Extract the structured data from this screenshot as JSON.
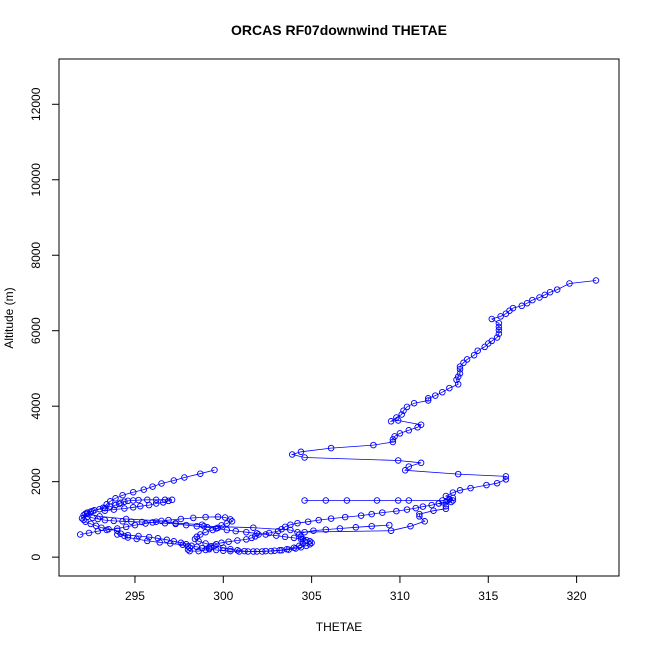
{
  "chart_data": {
    "type": "scatter",
    "title": "ORCAS RF07downwind THETAE",
    "xlabel": "THETAE",
    "ylabel": "Altitude (m)",
    "xlim": [
      290.7,
      322.4
    ],
    "ylim": [
      -500,
      13200
    ],
    "xticks": [
      295,
      300,
      305,
      310,
      315,
      320
    ],
    "yticks": [
      0,
      2000,
      4000,
      6000,
      8000,
      10000,
      12000
    ],
    "point_color": "#0000ff",
    "connect_points": true,
    "series": [
      {
        "values": [
          [
            321.1,
            7330
          ],
          [
            319.6,
            7250
          ],
          [
            318.9,
            7090
          ],
          [
            318.5,
            7020
          ],
          [
            318.2,
            6950
          ],
          [
            317.9,
            6880
          ],
          [
            317.5,
            6810
          ],
          [
            317.2,
            6730
          ],
          [
            316.9,
            6660
          ],
          [
            316.4,
            6600
          ],
          [
            316.2,
            6530
          ],
          [
            316.0,
            6450
          ],
          [
            315.7,
            6380
          ],
          [
            315.2,
            6310
          ],
          [
            315.6,
            6200
          ],
          [
            315.6,
            6100
          ],
          [
            315.6,
            6020
          ],
          [
            315.6,
            5920
          ],
          [
            315.5,
            5820
          ],
          [
            315.2,
            5730
          ],
          [
            315.0,
            5660
          ],
          [
            314.8,
            5570
          ],
          [
            314.4,
            5470
          ],
          [
            314.2,
            5350
          ],
          [
            313.8,
            5240
          ],
          [
            313.6,
            5150
          ],
          [
            313.4,
            5050
          ],
          [
            313.4,
            4980
          ],
          [
            313.4,
            4870
          ],
          [
            313.3,
            4780
          ],
          [
            313.2,
            4700
          ],
          [
            313.3,
            4580
          ],
          [
            312.8,
            4480
          ],
          [
            312.4,
            4370
          ],
          [
            312.0,
            4280
          ],
          [
            311.6,
            4210
          ],
          [
            311.6,
            4150
          ],
          [
            310.8,
            4080
          ],
          [
            310.4,
            3980
          ],
          [
            310.2,
            3880
          ],
          [
            310.1,
            3780
          ],
          [
            309.8,
            3700
          ],
          [
            309.5,
            3600
          ],
          [
            309.9,
            3620
          ],
          [
            311.2,
            3510
          ],
          [
            311.0,
            3440
          ],
          [
            310.5,
            3360
          ],
          [
            310.0,
            3280
          ],
          [
            309.7,
            3200
          ],
          [
            309.6,
            3120
          ],
          [
            309.6,
            3050
          ],
          [
            308.5,
            2970
          ],
          [
            306.1,
            2890
          ],
          [
            304.4,
            2790
          ],
          [
            303.9,
            2720
          ],
          [
            304.6,
            2640
          ],
          [
            309.9,
            2560
          ],
          [
            311.2,
            2500
          ],
          [
            310.5,
            2400
          ],
          [
            310.3,
            2300
          ],
          [
            313.3,
            2200
          ],
          [
            316.0,
            2140
          ],
          [
            316.0,
            2060
          ],
          [
            315.5,
            1960
          ],
          [
            314.9,
            1910
          ],
          [
            314.0,
            1830
          ],
          [
            313.4,
            1770
          ],
          [
            313.0,
            1710
          ],
          [
            312.6,
            1620
          ],
          [
            313.0,
            1570
          ],
          [
            312.8,
            1530
          ],
          [
            312.7,
            1500
          ],
          [
            312.9,
            1460
          ],
          [
            312.2,
            1420
          ],
          [
            312.6,
            1350
          ],
          [
            312.6,
            1280
          ],
          [
            311.9,
            1230
          ],
          [
            311.1,
            1140
          ],
          [
            311.1,
            1080
          ],
          [
            311.4,
            950
          ],
          [
            310.6,
            820
          ],
          [
            309.5,
            700
          ],
          [
            304.2,
            660
          ],
          [
            303.8,
            720
          ],
          [
            301.7,
            780
          ],
          [
            298.9,
            820
          ],
          [
            298.8,
            860
          ],
          [
            297.3,
            900
          ],
          [
            296.5,
            960
          ],
          [
            294.5,
            1010
          ],
          [
            293.0,
            1080
          ],
          [
            292.3,
            1150
          ],
          [
            292.6,
            1220
          ],
          [
            293.2,
            1310
          ],
          [
            293.4,
            1400
          ],
          [
            293.6,
            1480
          ],
          [
            293.9,
            1560
          ],
          [
            294.3,
            1640
          ],
          [
            294.9,
            1720
          ],
          [
            295.5,
            1790
          ],
          [
            296.0,
            1870
          ],
          [
            296.5,
            1950
          ],
          [
            297.2,
            2030
          ],
          [
            297.8,
            2110
          ],
          [
            298.7,
            2210
          ],
          [
            299.5,
            2310
          ]
        ]
      },
      {
        "values": [
          [
            292.0,
            1030
          ],
          [
            292.1,
            990
          ],
          [
            292.2,
            940
          ],
          [
            292.5,
            880
          ],
          [
            292.8,
            830
          ],
          [
            293.1,
            780
          ],
          [
            293.5,
            740
          ],
          [
            294.0,
            700
          ],
          [
            294.2,
            620
          ],
          [
            294.4,
            560
          ],
          [
            294.6,
            520
          ],
          [
            295.1,
            480
          ],
          [
            295.7,
            430
          ],
          [
            296.4,
            390
          ],
          [
            297.0,
            360
          ],
          [
            297.7,
            330
          ],
          [
            298.0,
            290
          ],
          [
            298.1,
            250
          ],
          [
            298.0,
            200
          ],
          [
            298.1,
            160
          ],
          [
            298.6,
            160
          ],
          [
            299.0,
            190
          ],
          [
            299.2,
            240
          ],
          [
            299.3,
            290
          ],
          [
            299.6,
            340
          ],
          [
            299.9,
            380
          ],
          [
            300.3,
            410
          ],
          [
            300.8,
            440
          ],
          [
            301.3,
            470
          ],
          [
            301.6,
            510
          ],
          [
            301.8,
            550
          ],
          [
            302.0,
            600
          ],
          [
            302.6,
            640
          ],
          [
            303.1,
            690
          ],
          [
            303.3,
            740
          ],
          [
            303.5,
            800
          ],
          [
            303.8,
            860
          ],
          [
            304.2,
            900
          ],
          [
            304.8,
            940
          ],
          [
            305.4,
            980
          ],
          [
            306.1,
            1020
          ],
          [
            306.9,
            1060
          ],
          [
            307.8,
            1100
          ],
          [
            308.4,
            1140
          ],
          [
            309.0,
            1180
          ],
          [
            309.8,
            1220
          ],
          [
            310.4,
            1260
          ],
          [
            310.9,
            1300
          ],
          [
            311.3,
            1340
          ],
          [
            311.8,
            1380
          ],
          [
            312.2,
            1420
          ],
          [
            312.6,
            1460
          ],
          [
            313.0,
            1500
          ],
          [
            312.8,
            1540
          ],
          [
            312.4,
            1500
          ],
          [
            310.5,
            1500
          ],
          [
            309.9,
            1500
          ],
          [
            308.7,
            1500
          ],
          [
            307.0,
            1500
          ],
          [
            305.8,
            1500
          ],
          [
            304.6,
            1500
          ]
        ]
      },
      {
        "values": [
          [
            291.9,
            600
          ],
          [
            292.4,
            640
          ],
          [
            292.9,
            690
          ],
          [
            293.4,
            720
          ],
          [
            294.0,
            760
          ],
          [
            294.5,
            800
          ],
          [
            295.0,
            850
          ],
          [
            295.6,
            890
          ],
          [
            296.2,
            940
          ],
          [
            296.9,
            980
          ],
          [
            297.6,
            1010
          ],
          [
            298.3,
            1040
          ],
          [
            299.0,
            1060
          ],
          [
            299.7,
            1070
          ],
          [
            300.1,
            1050
          ],
          [
            300.4,
            1000
          ],
          [
            300.5,
            950
          ],
          [
            300.2,
            890
          ],
          [
            299.9,
            840
          ],
          [
            299.7,
            780
          ],
          [
            299.4,
            720
          ],
          [
            299.0,
            660
          ],
          [
            298.7,
            600
          ],
          [
            298.5,
            540
          ],
          [
            298.4,
            480
          ],
          [
            298.6,
            420
          ],
          [
            299.0,
            360
          ],
          [
            299.5,
            300
          ],
          [
            300.0,
            250
          ],
          [
            300.4,
            210
          ],
          [
            300.8,
            180
          ],
          [
            301.2,
            160
          ],
          [
            301.7,
            150
          ],
          [
            302.2,
            150
          ],
          [
            302.7,
            160
          ],
          [
            303.2,
            180
          ],
          [
            303.6,
            210
          ],
          [
            304.0,
            250
          ],
          [
            304.3,
            300
          ],
          [
            304.5,
            360
          ],
          [
            304.6,
            420
          ],
          [
            304.5,
            480
          ],
          [
            304.4,
            540
          ],
          [
            304.3,
            600
          ],
          [
            304.6,
            660
          ],
          [
            305.1,
            700
          ],
          [
            305.8,
            730
          ],
          [
            306.6,
            760
          ],
          [
            307.5,
            790
          ],
          [
            308.4,
            820
          ],
          [
            309.4,
            850
          ]
        ]
      },
      {
        "values": [
          [
            293.3,
            1230
          ],
          [
            293.8,
            1260
          ],
          [
            294.4,
            1290
          ],
          [
            294.9,
            1320
          ],
          [
            295.3,
            1350
          ],
          [
            295.8,
            1380
          ],
          [
            296.2,
            1420
          ],
          [
            296.6,
            1450
          ],
          [
            296.9,
            1490
          ],
          [
            297.1,
            1520
          ],
          [
            296.7,
            1520
          ],
          [
            296.2,
            1520
          ],
          [
            295.7,
            1520
          ],
          [
            295.2,
            1510
          ],
          [
            294.9,
            1500
          ],
          [
            294.6,
            1490
          ],
          [
            294.4,
            1470
          ],
          [
            294.2,
            1440
          ],
          [
            294.1,
            1410
          ],
          [
            293.9,
            1380
          ],
          [
            293.6,
            1340
          ],
          [
            293.3,
            1300
          ],
          [
            293.0,
            1270
          ],
          [
            292.7,
            1240
          ],
          [
            292.5,
            1210
          ],
          [
            292.3,
            1180
          ],
          [
            292.2,
            1150
          ],
          [
            292.1,
            1110
          ],
          [
            292.3,
            1070
          ],
          [
            292.6,
            1040
          ],
          [
            292.9,
            1010
          ],
          [
            293.3,
            980
          ],
          [
            293.8,
            960
          ],
          [
            294.3,
            950
          ],
          [
            294.8,
            940
          ],
          [
            295.4,
            930
          ],
          [
            296.0,
            920
          ],
          [
            296.7,
            900
          ],
          [
            297.3,
            880
          ],
          [
            297.9,
            850
          ],
          [
            298.5,
            820
          ],
          [
            299.1,
            790
          ],
          [
            299.6,
            760
          ],
          [
            300.2,
            720
          ],
          [
            300.7,
            690
          ],
          [
            301.3,
            660
          ],
          [
            301.9,
            630
          ],
          [
            302.4,
            600
          ],
          [
            303.0,
            570
          ],
          [
            303.5,
            540
          ],
          [
            304.0,
            510
          ],
          [
            304.4,
            480
          ],
          [
            304.7,
            450
          ],
          [
            304.9,
            420
          ],
          [
            305.0,
            380
          ],
          [
            304.9,
            340
          ],
          [
            304.7,
            300
          ],
          [
            304.4,
            260
          ],
          [
            304.1,
            230
          ],
          [
            303.7,
            200
          ],
          [
            303.3,
            180
          ],
          [
            302.9,
            170
          ],
          [
            302.4,
            160
          ],
          [
            301.9,
            150
          ],
          [
            301.4,
            150
          ],
          [
            300.9,
            150
          ],
          [
            300.4,
            160
          ],
          [
            300.0,
            170
          ],
          [
            299.6,
            190
          ],
          [
            299.2,
            210
          ],
          [
            298.8,
            240
          ],
          [
            298.5,
            270
          ],
          [
            298.2,
            300
          ],
          [
            297.9,
            340
          ],
          [
            297.6,
            380
          ],
          [
            297.2,
            420
          ],
          [
            296.8,
            460
          ],
          [
            296.3,
            500
          ],
          [
            295.8,
            530
          ],
          [
            295.2,
            560
          ],
          [
            294.6,
            580
          ],
          [
            294.0,
            600
          ]
        ]
      }
    ]
  }
}
